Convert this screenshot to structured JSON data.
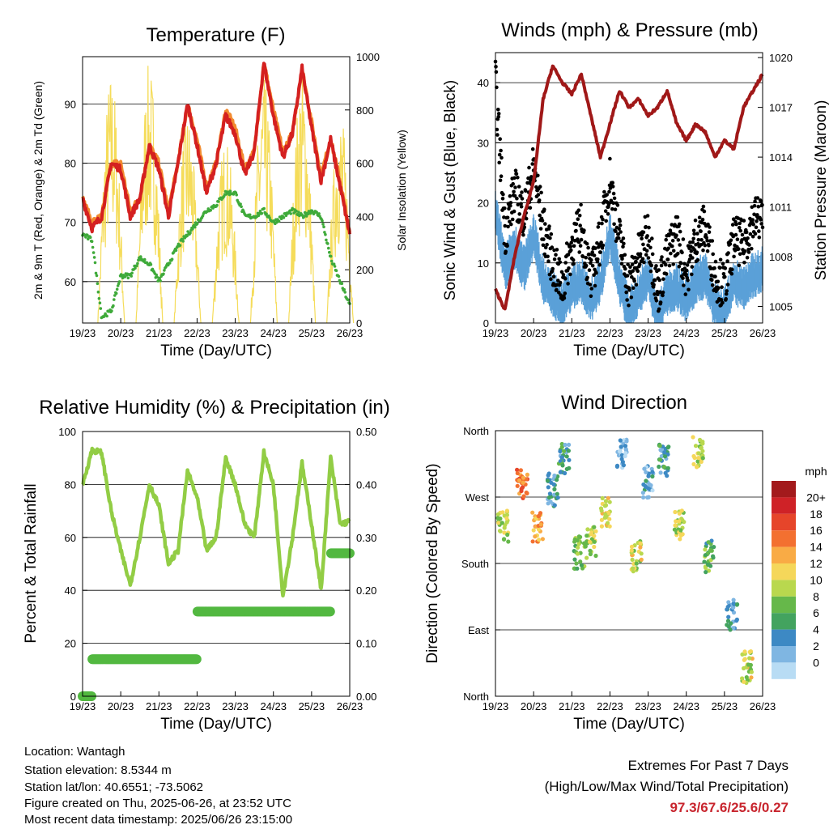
{
  "x_ticks": [
    "19/23",
    "20/23",
    "21/23",
    "22/23",
    "23/23",
    "24/23",
    "25/23",
    "26/23"
  ],
  "x_label": "Time (Day/UTC)",
  "colors": {
    "temp2m": "#d42020",
    "temp9m": "#f28b30",
    "dewpoint": "#3faa3a",
    "solar": "#f5dc5a",
    "pressure": "#a01818",
    "wind": "#5aa0d8",
    "gust": "#000000",
    "rh": "#92cd45",
    "precip": "#52b840",
    "extremes": "#c8252e"
  },
  "panels": {
    "temperature": {
      "title": "Temperature (F)",
      "ylabel_left": "2m & 9m T (Red, Orange) & 2m Td (Green)",
      "ylabel_right": "Solar Insolation (Yellow)",
      "left_ticks": [
        "60",
        "70",
        "80",
        "90"
      ],
      "right_ticks": [
        "0",
        "200",
        "400",
        "600",
        "800",
        "1000"
      ]
    },
    "winds": {
      "title": "Winds (mph) & Pressure (mb)",
      "ylabel_left": "Sonic Wind & Gust (Blue, Black)",
      "ylabel_right": "Station Pressure (Maroon)",
      "left_ticks": [
        "0",
        "10",
        "20",
        "30",
        "40"
      ],
      "right_ticks": [
        "1005",
        "1008",
        "1011",
        "1014",
        "1017",
        "1020"
      ]
    },
    "humidity": {
      "title": "Relative Humidity (%) & Precipitation (in)",
      "ylabel_left": "Percent & Total Rainfall",
      "left_ticks": [
        "0",
        "20",
        "40",
        "60",
        "80",
        "100"
      ],
      "right_ticks": [
        "0.00",
        "0.10",
        "0.20",
        "0.30",
        "0.40",
        "0.50"
      ]
    },
    "direction": {
      "title": "Wind Direction",
      "ylabel_left": "Direction (Colored By Speed)",
      "left_ticks": [
        "North",
        "East",
        "South",
        "West",
        "North"
      ],
      "legend_title": "mph",
      "legend_labels": [
        "20+",
        "18",
        "16",
        "14",
        "12",
        "10",
        "8",
        "6",
        "4",
        "2",
        "0"
      ],
      "legend_colors": [
        "#a31a1c",
        "#cf2227",
        "#e6452a",
        "#f37030",
        "#f9ab45",
        "#f5d75a",
        "#b9d84e",
        "#66b84a",
        "#43a35f",
        "#3d89c4",
        "#7fb6e2",
        "#b8dcf4"
      ]
    }
  },
  "info": {
    "location": "Location: Wantagh",
    "elevation": "Station elevation: 8.5344 m",
    "latlon": "Station lat/lon: 40.6551; -73.5062",
    "created": "Figure created on Thu, 2025-06-26, at 23:52 UTC",
    "recent": "Most recent data timestamp: 2025/06/26 23:15:00"
  },
  "extremes": {
    "title": "Extremes For Past 7 Days",
    "subtitle": "(High/Low/Max Wind/Total Precipitation)",
    "value": "97.3/67.6/25.6/0.27"
  },
  "chart_data": [
    {
      "type": "line",
      "title": "Temperature (F)",
      "xlabel": "Time (Day/UTC)",
      "ylabel": "2m & 9m T (Red, Orange) & 2m Td (Green)",
      "y2label": "Solar Insolation (Yellow)",
      "x": [
        0,
        0.25,
        0.5,
        0.75,
        1,
        1.25,
        1.5,
        1.75,
        2,
        2.25,
        2.5,
        2.75,
        3,
        3.25,
        3.5,
        3.75,
        4,
        4.25,
        4.5,
        4.75,
        5,
        5.25,
        5.5,
        5.75,
        6,
        6.25,
        6.5,
        6.75,
        7
      ],
      "ylim": [
        53,
        98
      ],
      "y2lim": [
        0,
        1000
      ],
      "series": [
        {
          "name": "2m T",
          "axis": "left",
          "values": [
            74,
            69,
            71,
            80,
            79,
            71,
            74,
            83,
            79,
            71,
            80,
            90,
            83,
            75,
            80,
            88,
            85,
            78,
            82,
            97,
            88,
            81,
            85,
            96,
            86,
            77,
            84,
            76,
            68
          ]
        },
        {
          "name": "9m T",
          "axis": "left",
          "values": [
            74,
            70,
            71,
            80,
            80,
            72,
            74,
            83,
            80,
            72,
            80,
            90,
            84,
            76,
            80,
            89,
            86,
            79,
            82,
            97,
            89,
            82,
            85,
            96,
            87,
            78,
            84,
            77,
            68
          ]
        },
        {
          "name": "2m Td",
          "axis": "left",
          "values": [
            68,
            67,
            54,
            55,
            61,
            61,
            64,
            63,
            60,
            63,
            66,
            68,
            70,
            72,
            73,
            75,
            75,
            71,
            71,
            72,
            70,
            71,
            72,
            71,
            72,
            71,
            64,
            60,
            56
          ]
        },
        {
          "name": "Solar Insolation",
          "axis": "right",
          "values": [
            0,
            0,
            0,
            950,
            0,
            0,
            0,
            980,
            0,
            0,
            0,
            800,
            0,
            0,
            0,
            700,
            0,
            0,
            0,
            920,
            0,
            0,
            0,
            950,
            0,
            0,
            0,
            800,
            0
          ]
        }
      ]
    },
    {
      "type": "line",
      "title": "Winds (mph) & Pressure (mb)",
      "xlabel": "Time (Day/UTC)",
      "ylabel": "Sonic Wind & Gust (Blue, Black)",
      "y2label": "Station Pressure (Maroon)",
      "x": [
        0,
        0.25,
        0.5,
        0.75,
        1,
        1.25,
        1.5,
        1.75,
        2,
        2.25,
        2.5,
        2.75,
        3,
        3.25,
        3.5,
        3.75,
        4,
        4.25,
        4.5,
        4.75,
        5,
        5.25,
        5.5,
        5.75,
        6,
        6.25,
        6.5,
        6.75,
        7
      ],
      "ylim": [
        0,
        45
      ],
      "y2lim": [
        1004,
        1020.3
      ],
      "series": [
        {
          "name": "Pressure",
          "axis": "right",
          "values": [
            1006.0,
            1004.8,
            1008.0,
            1010.5,
            1012.5,
            1017.5,
            1019.5,
            1018.5,
            1017.8,
            1019.0,
            1016.5,
            1014.0,
            1016.0,
            1018.0,
            1017.0,
            1017.5,
            1016.5,
            1017.0,
            1018.0,
            1016.0,
            1015.0,
            1016.0,
            1015.5,
            1014.0,
            1015.0,
            1014.5,
            1017.0,
            1018.0,
            1019.0
          ]
        },
        {
          "name": "Sonic Wind",
          "axis": "left",
          "values": [
            20,
            10,
            14,
            10,
            16,
            8,
            6,
            4,
            7,
            8,
            5,
            8,
            16,
            8,
            3,
            6,
            9,
            2,
            6,
            7,
            5,
            8,
            9,
            4,
            3,
            8,
            7,
            9,
            10
          ]
        },
        {
          "name": "Gust",
          "axis": "left",
          "values": [
            40,
            15,
            22,
            18,
            26,
            16,
            10,
            6,
            13,
            16,
            7,
            14,
            24,
            14,
            6,
            11,
            15,
            5,
            11,
            15,
            8,
            14,
            16,
            8,
            6,
            14,
            13,
            17,
            18
          ]
        }
      ]
    },
    {
      "type": "line",
      "title": "Relative Humidity (%) & Precipitation (in)",
      "xlabel": "Time (Day/UTC)",
      "ylabel": "Percent & Total Rainfall",
      "x": [
        0,
        0.25,
        0.5,
        0.75,
        1,
        1.25,
        1.5,
        1.75,
        2,
        2.25,
        2.5,
        2.75,
        3,
        3.25,
        3.5,
        3.75,
        4,
        4.25,
        4.5,
        4.75,
        5,
        5.25,
        5.5,
        5.75,
        6,
        6.25,
        6.5,
        6.75,
        7
      ],
      "ylim": [
        0,
        100
      ],
      "y2lim": [
        0,
        0.5
      ],
      "series": [
        {
          "name": "Relative Humidity",
          "axis": "left",
          "values": [
            80,
            93,
            92,
            70,
            55,
            42,
            60,
            80,
            72,
            50,
            55,
            85,
            75,
            55,
            60,
            90,
            80,
            65,
            60,
            92,
            80,
            38,
            60,
            88,
            65,
            40,
            90,
            65,
            66
          ]
        },
        {
          "name": "Total Precipitation",
          "axis": "right",
          "values": [
            0,
            0.07,
            0.07,
            0.07,
            0.07,
            0.07,
            0.07,
            0.07,
            0.07,
            0.07,
            0.07,
            0.07,
            0.16,
            0.16,
            0.16,
            0.16,
            0.16,
            0.16,
            0.16,
            0.16,
            0.16,
            0.16,
            0.16,
            0.16,
            0.16,
            0.16,
            0.27,
            0.27,
            0.27
          ]
        }
      ]
    },
    {
      "type": "scatter",
      "title": "Wind Direction",
      "xlabel": "Time (Day/UTC)",
      "ylabel": "Direction (Colored By Speed)",
      "ylim": [
        0,
        360
      ],
      "y_tick_labels": [
        "North",
        "East",
        "South",
        "West",
        "North"
      ],
      "points": [
        {
          "x": 0.2,
          "dir": 230,
          "speed": 10
        },
        {
          "x": 0.7,
          "dir": 290,
          "speed": 16
        },
        {
          "x": 1.1,
          "dir": 230,
          "speed": 14
        },
        {
          "x": 1.5,
          "dir": 280,
          "speed": 4
        },
        {
          "x": 1.8,
          "dir": 320,
          "speed": 5
        },
        {
          "x": 2.2,
          "dir": 195,
          "speed": 8
        },
        {
          "x": 2.5,
          "dir": 210,
          "speed": 10
        },
        {
          "x": 2.9,
          "dir": 250,
          "speed": 12
        },
        {
          "x": 3.3,
          "dir": 330,
          "speed": 2
        },
        {
          "x": 3.7,
          "dir": 190,
          "speed": 11
        },
        {
          "x": 4.0,
          "dir": 290,
          "speed": 3
        },
        {
          "x": 4.4,
          "dir": 320,
          "speed": 5
        },
        {
          "x": 4.8,
          "dir": 230,
          "speed": 10
        },
        {
          "x": 5.3,
          "dir": 330,
          "speed": 10
        },
        {
          "x": 5.6,
          "dir": 190,
          "speed": 7
        },
        {
          "x": 6.2,
          "dir": 110,
          "speed": 4
        },
        {
          "x": 6.6,
          "dir": 40,
          "speed": 11
        }
      ]
    }
  ]
}
